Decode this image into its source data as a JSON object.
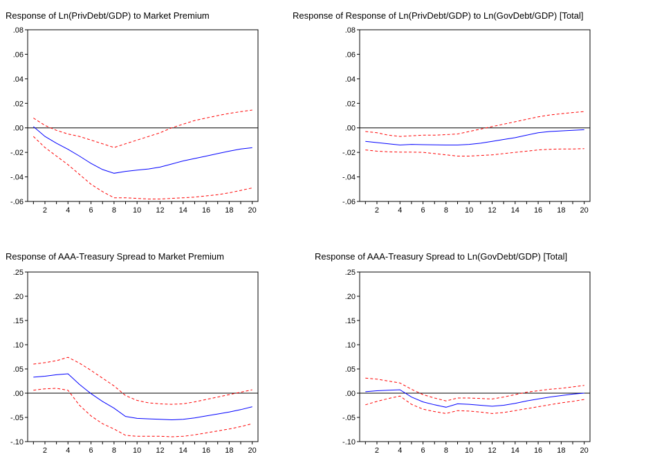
{
  "chart_data": [
    {
      "type": "line",
      "title": "Response of Ln(PrivDebt/GDP) to Market Premium",
      "xlabel": "",
      "ylabel": "",
      "x": [
        1,
        2,
        3,
        4,
        5,
        6,
        7,
        8,
        9,
        10,
        11,
        12,
        13,
        14,
        15,
        16,
        17,
        18,
        19,
        20
      ],
      "xticks": [
        2,
        4,
        6,
        8,
        10,
        12,
        14,
        16,
        18,
        20
      ],
      "ylim": [
        -0.06,
        0.08
      ],
      "yticks": [
        -0.06,
        -0.04,
        -0.02,
        0.0,
        0.02,
        0.04,
        0.06,
        0.08
      ],
      "ytick_labels": [
        "-.06",
        "-.04",
        "-.02",
        ".00",
        ".02",
        ".04",
        ".06",
        ".08"
      ],
      "zero_line": true,
      "series": [
        {
          "role": "response",
          "color": "#0000ff",
          "dashed": false,
          "values": [
            0.001,
            -0.007,
            -0.0125,
            -0.0175,
            -0.023,
            -0.029,
            -0.034,
            -0.037,
            -0.0355,
            -0.0345,
            -0.0335,
            -0.032,
            -0.0295,
            -0.027,
            -0.025,
            -0.023,
            -0.021,
            -0.019,
            -0.0172,
            -0.0162
          ]
        },
        {
          "role": "upper",
          "color": "#ff0000",
          "dashed": true,
          "values": [
            0.008,
            0.002,
            -0.002,
            -0.005,
            -0.007,
            -0.01,
            -0.013,
            -0.016,
            -0.013,
            -0.01,
            -0.007,
            -0.004,
            0.0,
            0.003,
            0.006,
            0.008,
            0.01,
            0.0118,
            0.0132,
            0.0145
          ]
        },
        {
          "role": "lower",
          "color": "#ff0000",
          "dashed": true,
          "values": [
            -0.007,
            -0.016,
            -0.023,
            -0.03,
            -0.038,
            -0.046,
            -0.052,
            -0.057,
            -0.057,
            -0.0575,
            -0.058,
            -0.058,
            -0.0575,
            -0.057,
            -0.0565,
            -0.0555,
            -0.0545,
            -0.053,
            -0.051,
            -0.049
          ]
        }
      ]
    },
    {
      "type": "line",
      "title": "Response of Response of Ln(PrivDebt/GDP) to Ln(GovDebt/GDP) [Total]",
      "xlabel": "",
      "ylabel": "",
      "x": [
        1,
        2,
        3,
        4,
        5,
        6,
        7,
        8,
        9,
        10,
        11,
        12,
        13,
        14,
        15,
        16,
        17,
        18,
        19,
        20
      ],
      "xticks": [
        2,
        4,
        6,
        8,
        10,
        12,
        14,
        16,
        18,
        20
      ],
      "ylim": [
        -0.06,
        0.08
      ],
      "yticks": [
        -0.06,
        -0.04,
        -0.02,
        0.0,
        0.02,
        0.04,
        0.06,
        0.08
      ],
      "ytick_labels": [
        "-.06",
        "-.04",
        "-.02",
        ".00",
        ".02",
        ".04",
        ".06",
        ".08"
      ],
      "zero_line": true,
      "series": [
        {
          "role": "response",
          "color": "#0000ff",
          "dashed": false,
          "values": [
            -0.011,
            -0.012,
            -0.013,
            -0.014,
            -0.0135,
            -0.0137,
            -0.0138,
            -0.014,
            -0.014,
            -0.0135,
            -0.0125,
            -0.011,
            -0.0095,
            -0.008,
            -0.006,
            -0.004,
            -0.003,
            -0.0025,
            -0.002,
            -0.0015
          ]
        },
        {
          "role": "upper",
          "color": "#ff0000",
          "dashed": true,
          "values": [
            -0.003,
            -0.004,
            -0.006,
            -0.007,
            -0.0065,
            -0.006,
            -0.006,
            -0.0055,
            -0.005,
            -0.003,
            -0.001,
            0.001,
            0.003,
            0.005,
            0.007,
            0.009,
            0.0105,
            0.0115,
            0.0125,
            0.0133
          ]
        },
        {
          "role": "lower",
          "color": "#ff0000",
          "dashed": true,
          "values": [
            -0.018,
            -0.019,
            -0.0195,
            -0.0198,
            -0.0198,
            -0.02,
            -0.021,
            -0.022,
            -0.023,
            -0.023,
            -0.0225,
            -0.022,
            -0.021,
            -0.02,
            -0.019,
            -0.018,
            -0.0175,
            -0.0172,
            -0.0172,
            -0.017
          ]
        }
      ]
    },
    {
      "type": "line",
      "title": "Response of AAA-Treasury Spread to Market Premium",
      "xlabel": "",
      "ylabel": "",
      "x": [
        1,
        2,
        3,
        4,
        5,
        6,
        7,
        8,
        9,
        10,
        11,
        12,
        13,
        14,
        15,
        16,
        17,
        18,
        19,
        20
      ],
      "xticks": [
        2,
        4,
        6,
        8,
        10,
        12,
        14,
        16,
        18,
        20
      ],
      "ylim": [
        -0.1,
        0.25
      ],
      "yticks": [
        -0.1,
        -0.05,
        0.0,
        0.05,
        0.1,
        0.15,
        0.2,
        0.25
      ],
      "ytick_labels": [
        "-.10",
        "-.05",
        ".00",
        ".05",
        ".10",
        ".15",
        ".20",
        ".25"
      ],
      "zero_line": true,
      "series": [
        {
          "role": "response",
          "color": "#0000ff",
          "dashed": false,
          "values": [
            0.033,
            0.035,
            0.038,
            0.04,
            0.018,
            -0.001,
            -0.017,
            -0.031,
            -0.048,
            -0.052,
            -0.053,
            -0.054,
            -0.055,
            -0.054,
            -0.051,
            -0.047,
            -0.043,
            -0.039,
            -0.034,
            -0.028
          ]
        },
        {
          "role": "upper",
          "color": "#ff0000",
          "dashed": true,
          "values": [
            0.06,
            0.063,
            0.067,
            0.074,
            0.062,
            0.047,
            0.031,
            0.015,
            -0.005,
            -0.015,
            -0.02,
            -0.022,
            -0.023,
            -0.022,
            -0.018,
            -0.013,
            -0.008,
            -0.003,
            0.002,
            0.007
          ]
        },
        {
          "role": "lower",
          "color": "#ff0000",
          "dashed": true,
          "values": [
            0.006,
            0.009,
            0.01,
            0.006,
            -0.025,
            -0.047,
            -0.063,
            -0.074,
            -0.087,
            -0.089,
            -0.089,
            -0.089,
            -0.09,
            -0.089,
            -0.086,
            -0.082,
            -0.078,
            -0.074,
            -0.069,
            -0.063
          ]
        }
      ]
    },
    {
      "type": "line",
      "title": "Response of AAA-Treasury Spread to Ln(GovDebt/GDP) [Total]",
      "xlabel": "",
      "ylabel": "",
      "x": [
        1,
        2,
        3,
        4,
        5,
        6,
        7,
        8,
        9,
        10,
        11,
        12,
        13,
        14,
        15,
        16,
        17,
        18,
        19,
        20
      ],
      "xticks": [
        2,
        4,
        6,
        8,
        10,
        12,
        14,
        16,
        18,
        20
      ],
      "ylim": [
        -0.1,
        0.25
      ],
      "yticks": [
        -0.1,
        -0.05,
        0.0,
        0.05,
        0.1,
        0.15,
        0.2,
        0.25
      ],
      "ytick_labels": [
        "-.10",
        "-.05",
        ".00",
        ".05",
        ".10",
        ".15",
        ".20",
        ".25"
      ],
      "zero_line": true,
      "series": [
        {
          "role": "response",
          "color": "#0000ff",
          "dashed": false,
          "values": [
            0.003,
            0.005,
            0.006,
            0.007,
            -0.008,
            -0.018,
            -0.024,
            -0.029,
            -0.022,
            -0.023,
            -0.025,
            -0.027,
            -0.025,
            -0.021,
            -0.016,
            -0.012,
            -0.008,
            -0.005,
            -0.002,
            0.0
          ]
        },
        {
          "role": "upper",
          "color": "#ff0000",
          "dashed": true,
          "values": [
            0.031,
            0.029,
            0.025,
            0.021,
            0.008,
            -0.003,
            -0.01,
            -0.016,
            -0.01,
            -0.01,
            -0.011,
            -0.012,
            -0.008,
            -0.003,
            0.002,
            0.005,
            0.008,
            0.01,
            0.013,
            0.016
          ]
        },
        {
          "role": "lower",
          "color": "#ff0000",
          "dashed": true,
          "values": [
            -0.024,
            -0.017,
            -0.011,
            -0.006,
            -0.023,
            -0.033,
            -0.038,
            -0.042,
            -0.036,
            -0.037,
            -0.039,
            -0.042,
            -0.04,
            -0.036,
            -0.032,
            -0.028,
            -0.024,
            -0.02,
            -0.017,
            -0.013
          ]
        }
      ]
    }
  ]
}
